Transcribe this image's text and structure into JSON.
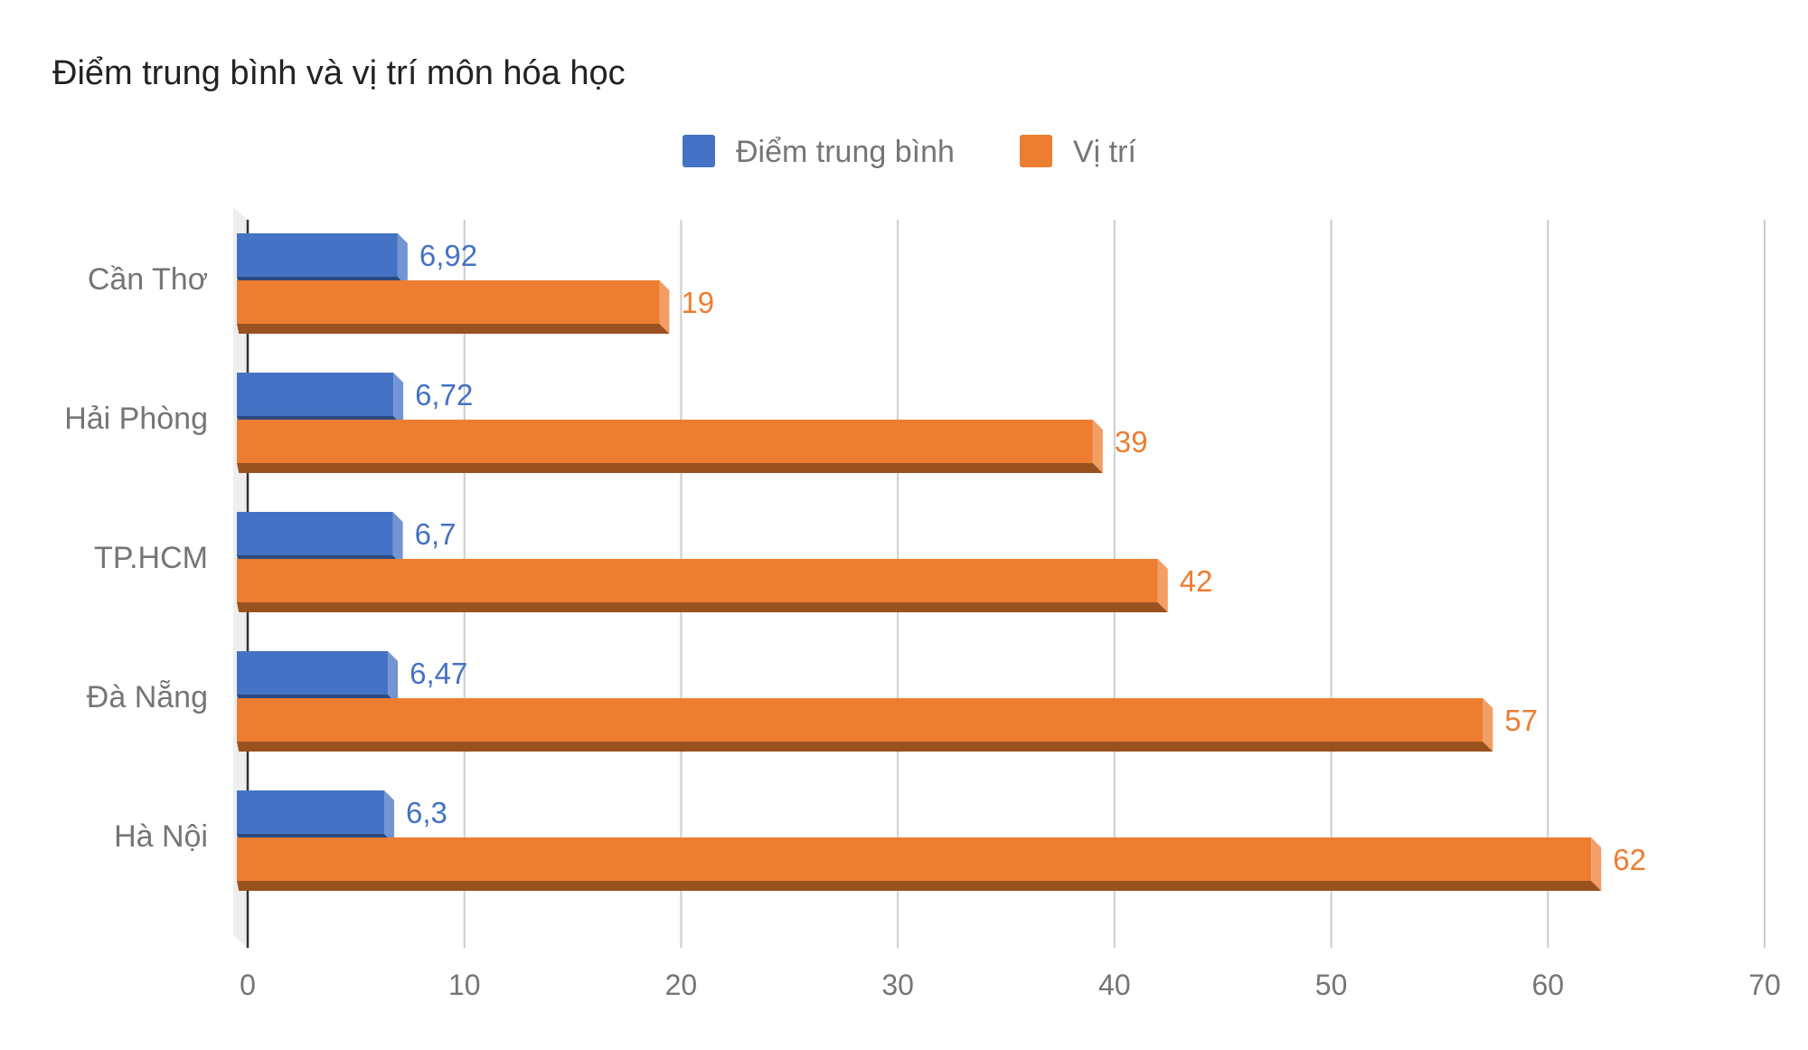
{
  "chart_data": {
    "type": "bar",
    "orientation": "horizontal",
    "style": "3d",
    "title": "Điểm trung bình và vị trí môn hóa học",
    "categories": [
      "Cần Thơ",
      "Hải Phòng",
      "TP.HCM",
      "Đà Nẵng",
      "Hà Nội"
    ],
    "series": [
      {
        "name": "Điểm trung bình",
        "color": "#4472c4",
        "values": [
          6.92,
          6.72,
          6.7,
          6.47,
          6.3
        ],
        "labels": [
          "6,92",
          "6,72",
          "6,7",
          "6,47",
          "6,3"
        ]
      },
      {
        "name": "Vị trí",
        "color": "#ed7d31",
        "values": [
          19,
          39,
          42,
          57,
          62
        ],
        "labels": [
          "19",
          "39",
          "42",
          "57",
          "62"
        ]
      }
    ],
    "xlim": [
      0,
      70
    ],
    "x_ticks": [
      "0",
      "10",
      "20",
      "30",
      "40",
      "50",
      "60",
      "70"
    ],
    "grid": true,
    "legend_position": "top-center"
  }
}
